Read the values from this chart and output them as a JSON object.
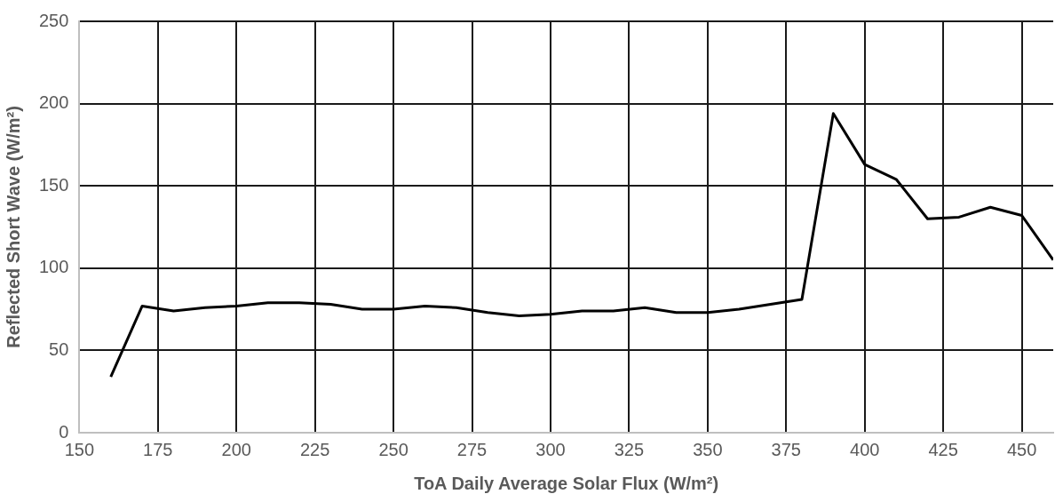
{
  "chart_data": {
    "type": "line",
    "xlabel": "ToA Daily Average Solar Flux (W/m²)",
    "ylabel": "Reflected Short Wave (W/m²)",
    "x": [
      160,
      170,
      180,
      190,
      200,
      210,
      220,
      230,
      240,
      250,
      260,
      270,
      280,
      290,
      300,
      310,
      320,
      330,
      340,
      350,
      360,
      370,
      380,
      390,
      400,
      410,
      420,
      430,
      440,
      450,
      460
    ],
    "series": [
      {
        "color": "#000000",
        "values": [
          34,
          77,
          74,
          76,
          77,
          79,
          79,
          78,
          75,
          75,
          77,
          76,
          73,
          71,
          72,
          74,
          74,
          76,
          73,
          73,
          75,
          78,
          81,
          194,
          163,
          154,
          130,
          131,
          137,
          132,
          105
        ]
      }
    ],
    "xlim": [
      150,
      460
    ],
    "xticks": [
      150,
      175,
      200,
      225,
      250,
      275,
      300,
      325,
      350,
      375,
      400,
      425,
      450
    ],
    "ylim": [
      0,
      250
    ],
    "yticks": [
      0,
      50,
      100,
      150,
      200,
      250
    ],
    "grid": true,
    "legend": false,
    "marker": "none",
    "line_style": "solid"
  }
}
